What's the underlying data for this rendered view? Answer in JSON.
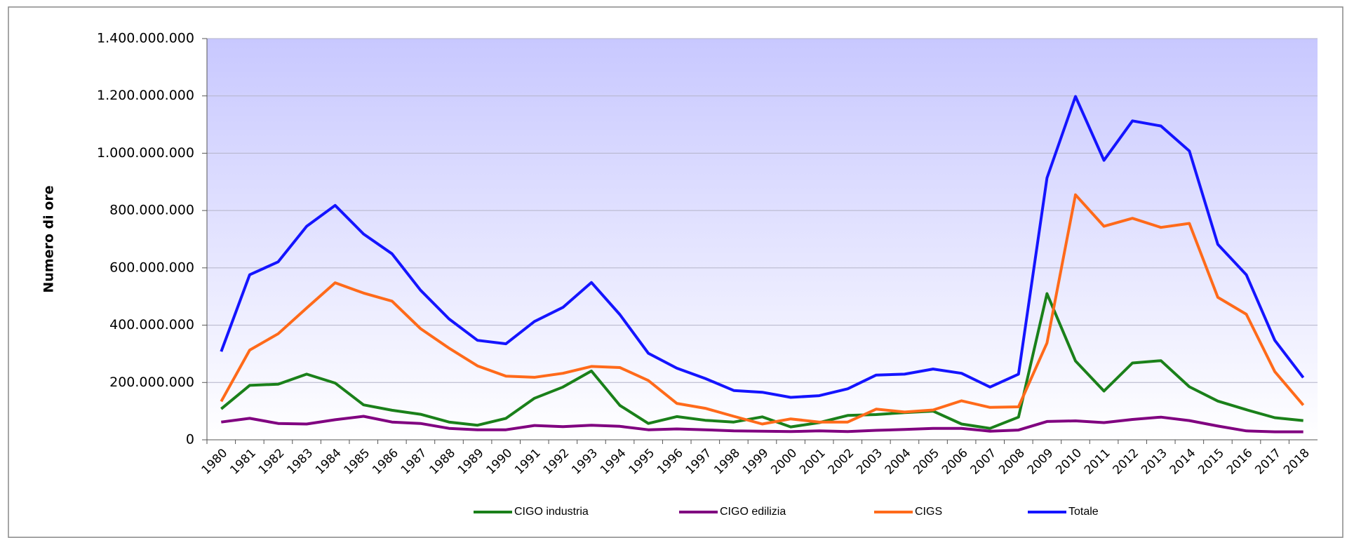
{
  "chart_data": {
    "type": "line",
    "y_label": "Numero di ore",
    "categories": [
      "1980",
      "1981",
      "1982",
      "1983",
      "1984",
      "1985",
      "1986",
      "1987",
      "1988",
      "1989",
      "1990",
      "1991",
      "1992",
      "1993",
      "1994",
      "1995",
      "1996",
      "1997",
      "1998",
      "1999",
      "2000",
      "2001",
      "2002",
      "2003",
      "2004",
      "2005",
      "2006",
      "2007",
      "2008",
      "2009",
      "2010",
      "2011",
      "2012",
      "2013",
      "2014",
      "2015",
      "2016",
      "2017",
      "2018"
    ],
    "ylim": [
      0,
      1400000000
    ],
    "yticks": [
      0,
      {
        "value": 200000000,
        "label": "200.000.000"
      },
      {
        "value": 400000000,
        "label": "400.000.000"
      },
      {
        "value": 600000000,
        "label": "600.000.000"
      },
      {
        "value": 800000000,
        "label": "800.000.000"
      },
      {
        "value": 1000000000,
        "label": "1.000.000.000"
      },
      {
        "value": 1200000000,
        "label": "1.200.000.000"
      },
      {
        "value": 1400000000,
        "label": "1.400.000.000"
      }
    ],
    "grid": true,
    "legend": "bottom",
    "series": [
      {
        "name": "CIGO industria",
        "color": "#1a801a",
        "values": [
          108000000,
          190000000,
          194000000,
          229000000,
          198000000,
          122000000,
          103000000,
          89000000,
          62000000,
          51000000,
          75000000,
          145000000,
          184000000,
          240000000,
          120000000,
          57000000,
          81000000,
          68000000,
          62000000,
          80000000,
          45000000,
          60000000,
          85000000,
          88000000,
          95000000,
          100000000,
          55000000,
          40000000,
          79000000,
          510000000,
          275000000,
          170000000,
          268000000,
          276000000,
          185000000,
          135000000,
          105000000,
          77000000,
          67000000
        ]
      },
      {
        "name": "CIGO edilizia",
        "color": "#800080",
        "values": [
          62000000,
          75000000,
          57000000,
          55000000,
          70000000,
          82000000,
          62000000,
          57000000,
          40000000,
          35000000,
          35000000,
          50000000,
          46000000,
          51000000,
          47000000,
          35000000,
          38000000,
          35000000,
          31000000,
          30000000,
          29000000,
          31000000,
          29000000,
          33000000,
          36000000,
          40000000,
          40000000,
          30000000,
          34000000,
          64000000,
          66000000,
          60000000,
          71000000,
          79000000,
          67000000,
          48000000,
          31000000,
          28000000,
          28000000
        ]
      },
      {
        "name": "CIGS",
        "color": "#ff6a1a",
        "values": [
          134000000,
          313000000,
          370000000,
          460000000,
          548000000,
          512000000,
          484000000,
          388000000,
          320000000,
          258000000,
          222000000,
          218000000,
          232000000,
          256000000,
          252000000,
          207000000,
          127000000,
          110000000,
          82000000,
          55000000,
          73000000,
          62000000,
          62000000,
          107000000,
          97000000,
          104000000,
          136000000,
          113000000,
          115000000,
          338000000,
          855000000,
          745000000,
          773000000,
          741000000,
          755000000,
          497000000,
          438000000,
          238000000,
          121000000
        ]
      },
      {
        "name": "Totale",
        "color": "#1414ff",
        "values": [
          308000000,
          576000000,
          621000000,
          745000000,
          818000000,
          718000000,
          649000000,
          522000000,
          422000000,
          347000000,
          335000000,
          413000000,
          462000000,
          549000000,
          437000000,
          302000000,
          250000000,
          214000000,
          172000000,
          166000000,
          148000000,
          154000000,
          178000000,
          226000000,
          229000000,
          247000000,
          232000000,
          184000000,
          229000000,
          914000000,
          1198000000,
          975000000,
          1113000000,
          1095000000,
          1008000000,
          682000000,
          576000000,
          347000000,
          217000000
        ]
      }
    ]
  }
}
